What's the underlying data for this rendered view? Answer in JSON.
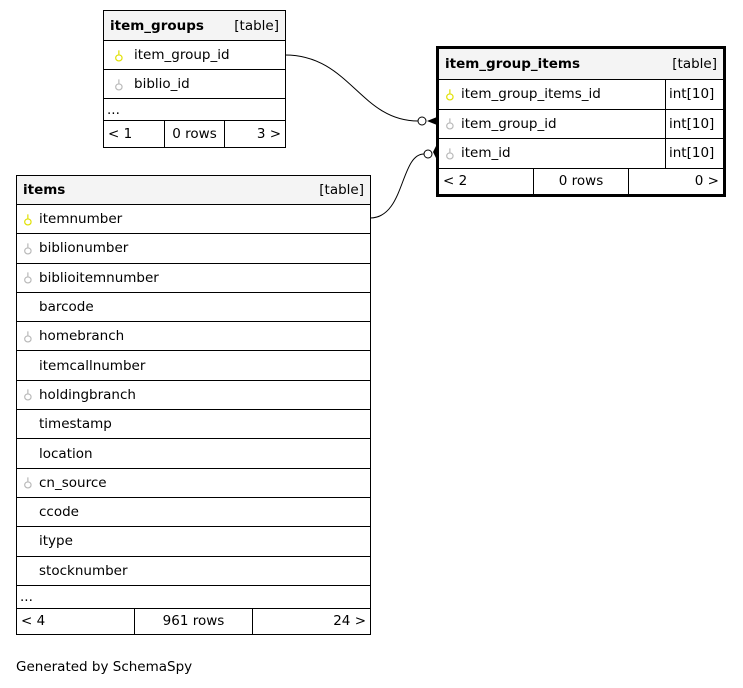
{
  "tables": [
    {
      "name": "item_groups",
      "kind": "[table]",
      "columns": [
        {
          "name": "item_group_id",
          "key": "primary"
        },
        {
          "name": "biblio_id",
          "key": "foreign"
        }
      ],
      "more": "...",
      "footer": {
        "parents": "< 1",
        "rows": "0 rows",
        "children": "3 >"
      }
    },
    {
      "name": "item_group_items",
      "kind": "[table]",
      "columns": [
        {
          "name": "item_group_items_id",
          "key": "primary",
          "type": "int[10]"
        },
        {
          "name": "item_group_id",
          "key": "foreign",
          "type": "int[10]"
        },
        {
          "name": "item_id",
          "key": "foreign",
          "type": "int[10]"
        }
      ],
      "footer": {
        "parents": "< 2",
        "rows": "0 rows",
        "children": "0 >"
      }
    },
    {
      "name": "items",
      "kind": "[table]",
      "columns": [
        {
          "name": "itemnumber",
          "key": "primary"
        },
        {
          "name": "biblionumber",
          "key": "foreign"
        },
        {
          "name": "biblioitemnumber",
          "key": "foreign"
        },
        {
          "name": "barcode",
          "key": ""
        },
        {
          "name": "homebranch",
          "key": "foreign"
        },
        {
          "name": "itemcallnumber",
          "key": ""
        },
        {
          "name": "holdingbranch",
          "key": "foreign"
        },
        {
          "name": "timestamp",
          "key": ""
        },
        {
          "name": "location",
          "key": ""
        },
        {
          "name": "cn_source",
          "key": "foreign"
        },
        {
          "name": "ccode",
          "key": ""
        },
        {
          "name": "itype",
          "key": ""
        },
        {
          "name": "stocknumber",
          "key": ""
        }
      ],
      "more": "...",
      "footer": {
        "parents": "< 4",
        "rows": "961 rows",
        "children": "24 >"
      }
    }
  ],
  "colors": {
    "primary_key": "#e0e000",
    "foreign_key": "#b8b8b8",
    "header_bg": "#f4f4f4"
  },
  "generated_by": "Generated by SchemaSpy"
}
